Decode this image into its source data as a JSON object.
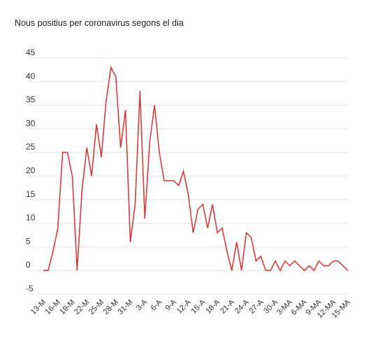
{
  "chart_data": {
    "type": "line",
    "title": "Nous positius per coronavirus segons el dia",
    "xlabel": "",
    "ylabel": "",
    "ylim": [
      -5,
      45
    ],
    "yticks": [
      -5,
      0,
      5,
      10,
      15,
      20,
      25,
      30,
      35,
      40,
      45
    ],
    "grid": true,
    "legend": "none",
    "line_color": "#d93a3a",
    "x_tick_labels": [
      "13-M",
      "16-M",
      "19-M",
      "22-M",
      "25-M",
      "28-M",
      "31-M",
      "3-A",
      "6-A",
      "9-A",
      "12-A",
      "15-A",
      "18-A",
      "21-A",
      "24-A",
      "27-A",
      "30-A",
      "3-MA",
      "6-MA",
      "9-MA",
      "12-MA",
      "15-MA"
    ],
    "series": [
      {
        "values": [
          0,
          0,
          4,
          9,
          25,
          25,
          20,
          0,
          17,
          26,
          20,
          31,
          24,
          36,
          43,
          41,
          26,
          34,
          6,
          14,
          38,
          11,
          27,
          35,
          25,
          19,
          19,
          19,
          18,
          21,
          16,
          8,
          13,
          14,
          9,
          14,
          8,
          9,
          4,
          0,
          6,
          0,
          8,
          7,
          2,
          3,
          0,
          0,
          2,
          0,
          2,
          1,
          2,
          1,
          0,
          1,
          0,
          2,
          1,
          1,
          2,
          2,
          1,
          0
        ]
      }
    ]
  }
}
